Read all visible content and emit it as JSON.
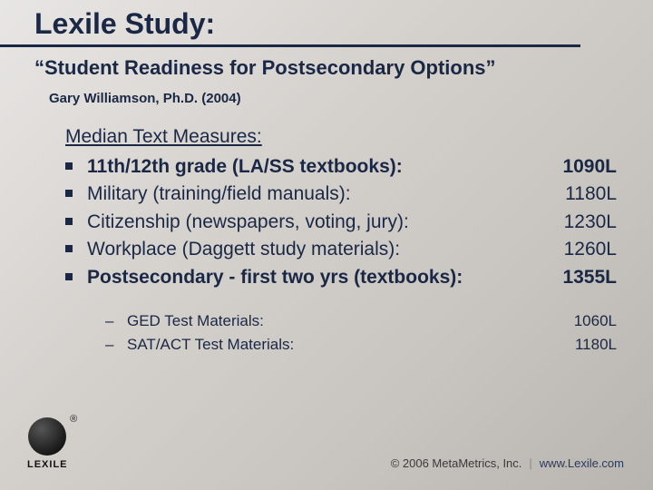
{
  "colors": {
    "text": "#1a2845",
    "underline": "#1a2845",
    "bg_gradient_from": "#e8e6e4",
    "bg_gradient_to": "#b8b4b0"
  },
  "typography": {
    "title_fontsize": 32,
    "subtitle_fontsize": 22,
    "author_fontsize": 15,
    "body_fontsize": 21,
    "sub_fontsize": 17,
    "footer_fontsize": 13,
    "family": "Arial"
  },
  "title": "Lexile Study:",
  "subtitle": "“Student Readiness for Postsecondary Options”",
  "author": "Gary Williamson, Ph.D. (2004)",
  "section_heading": "Median Text Measures:",
  "bullets": [
    {
      "label": "11th/12th grade (LA/SS textbooks):",
      "value": "1090L",
      "bold": true
    },
    {
      "label": "Military (training/field manuals):",
      "value": "1180L",
      "bold": false
    },
    {
      "label": "Citizenship (newspapers, voting, jury):",
      "value": "1230L",
      "bold": false
    },
    {
      "label": "Workplace (Daggett study materials):",
      "value": "1260L",
      "bold": false
    },
    {
      "label": "Postsecondary - first two yrs (textbooks):",
      "value": "1355L",
      "bold": true
    }
  ],
  "sub_bullets": [
    {
      "label": "GED Test Materials:",
      "value": "1060L"
    },
    {
      "label": "SAT/ACT Test Materials:",
      "value": "1180L"
    }
  ],
  "logo": {
    "text": "LEXILE"
  },
  "footer": {
    "copyright": "© 2006 MetaMetrics, Inc.",
    "url": "www.Lexile.com"
  }
}
